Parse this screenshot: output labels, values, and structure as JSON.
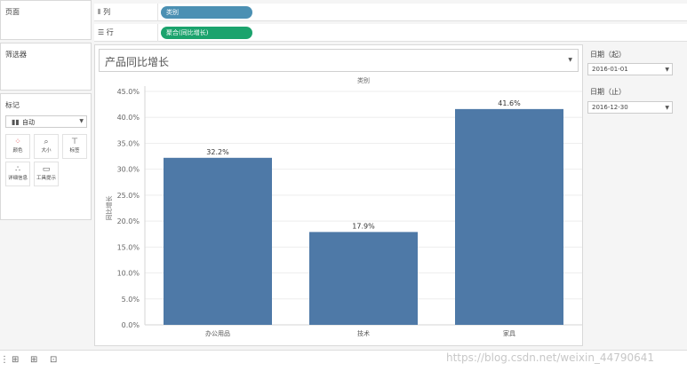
{
  "left_panel": {
    "pages_title": "页面",
    "filters_title": "筛选器",
    "marks_title": "标记",
    "mark_type": "自动",
    "mark_buttons": [
      "颜色",
      "大小",
      "标签",
      "详细信息",
      "工具提示"
    ]
  },
  "shelves": {
    "columns_label": "列",
    "rows_label": "行",
    "columns_pill": "类别",
    "rows_pill": "聚合(同比增长)"
  },
  "view": {
    "title": "产品同比增长"
  },
  "filters": {
    "start_label": "日期（起）",
    "start_value": "2016-01-01",
    "end_label": "日期（止）",
    "end_value": "2016-12-30"
  },
  "chart_data": {
    "type": "bar",
    "header": "类别",
    "categories": [
      "办公用品",
      "技术",
      "家具"
    ],
    "values": [
      32.2,
      17.9,
      41.6
    ],
    "data_labels": [
      "32.2%",
      "17.9%",
      "41.6%"
    ],
    "ylabel": "同比增长",
    "ylim": [
      0,
      45
    ],
    "yticks": [
      "0.0%",
      "5.0%",
      "10.0%",
      "15.0%",
      "20.0%",
      "25.0%",
      "30.0%",
      "35.0%",
      "40.0%",
      "45.0%"
    ],
    "bar_color": "#4e79a7",
    "grid": true
  },
  "colors": {
    "columns_pill": "#4b90b3",
    "rows_pill": "#1ba36d"
  },
  "watermark": "https://blog.csdn.net/weixin_44790641"
}
